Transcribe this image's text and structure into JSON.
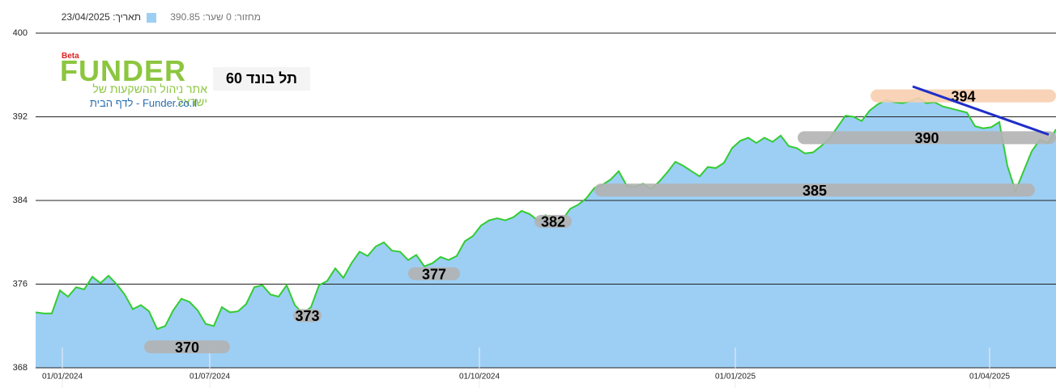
{
  "chart_data": {
    "type": "area",
    "header": {
      "date": "תאריך: 23/04/2025",
      "legend": "מחזור: 0 שער: 390.85"
    },
    "title": "תל בונד 60",
    "logo": {
      "beta": "Beta",
      "name": "FUNDER",
      "tagline": "אתר ניהול ההשקעות של ישראל",
      "link": "Funder.co.il - לדף הבית"
    },
    "line_color": "#33cc33",
    "fill_color": "#9dcff5",
    "values": [
      373.3,
      373.2,
      373.2,
      375.4,
      374.8,
      375.7,
      375.5,
      376.7,
      376.1,
      376.8,
      376.0,
      375.0,
      373.6,
      374.0,
      373.4,
      371.7,
      372.0,
      373.5,
      374.6,
      374.3,
      373.5,
      372.2,
      372.0,
      373.8,
      373.3,
      373.4,
      374.1,
      375.7,
      375.9,
      375.0,
      374.8,
      375.9,
      374.0,
      373.2,
      373.8,
      375.9,
      376.3,
      377.5,
      376.6,
      378.0,
      379.1,
      378.7,
      379.6,
      380.0,
      379.2,
      379.1,
      378.3,
      378.8,
      377.7,
      378.0,
      378.6,
      378.3,
      378.7,
      380.1,
      380.6,
      381.6,
      382.1,
      382.3,
      382.1,
      382.4,
      383.0,
      382.7,
      382.1,
      382.6,
      381.9,
      382.1,
      383.2,
      383.6,
      384.2,
      385.2,
      385.5,
      386.0,
      386.8,
      385.4,
      385.3,
      385.6,
      385.1,
      385.8,
      386.7,
      387.7,
      387.3,
      386.8,
      386.3,
      387.2,
      387.1,
      387.6,
      389.0,
      389.7,
      390.0,
      389.5,
      390.0,
      389.6,
      390.2,
      389.2,
      389.0,
      388.5,
      388.6,
      389.2,
      389.9,
      391.0,
      392.1,
      392.0,
      391.6,
      392.6,
      393.2,
      393.6,
      393.4,
      393.3,
      393.5,
      393.8,
      393.3,
      393.4,
      393.0,
      392.8,
      392.6,
      392.4,
      391.1,
      390.9,
      391.0,
      391.5,
      387.3,
      384.9,
      386.8,
      388.7,
      389.8,
      389.5,
      390.8
    ],
    "xlim": [
      0,
      126
    ],
    "xticks": [
      {
        "value": 3.3,
        "label": "01/01/2024"
      },
      {
        "value": 21.5,
        "label": "01/07/2024"
      },
      {
        "value": 54.8,
        "label": "01/10/2024"
      },
      {
        "value": 86.4,
        "label": "01/01/2025"
      },
      {
        "value": 117.8,
        "label": "01/04/2025"
      }
    ],
    "ylim": [
      368,
      400
    ],
    "yticks": [
      368,
      376,
      384,
      392,
      400
    ],
    "levels": [
      {
        "value": 370,
        "from": 13.4,
        "to": 24,
        "color": "#b3b3b3"
      },
      {
        "value": 373,
        "from": 31.8,
        "to": 35.3,
        "color": "#b3b3b3"
      },
      {
        "value": 377,
        "from": 46,
        "to": 52.4,
        "color": "#b3b3b3"
      },
      {
        "value": 382,
        "from": 61.6,
        "to": 66.2,
        "color": "#b3b3b3"
      },
      {
        "value": 385,
        "from": 69,
        "to": 123.4,
        "color": "#b3b3b3"
      },
      {
        "value": 390,
        "from": 94.1,
        "to": 126,
        "color": "#b3b3b3"
      },
      {
        "value": 394,
        "from": 103.1,
        "to": 126,
        "color": "#f9cfb0"
      }
    ],
    "trendline": {
      "x": [
        108.3,
        125.1
      ],
      "y": [
        394.9,
        390.3
      ],
      "color": "#1f2fc8"
    }
  }
}
